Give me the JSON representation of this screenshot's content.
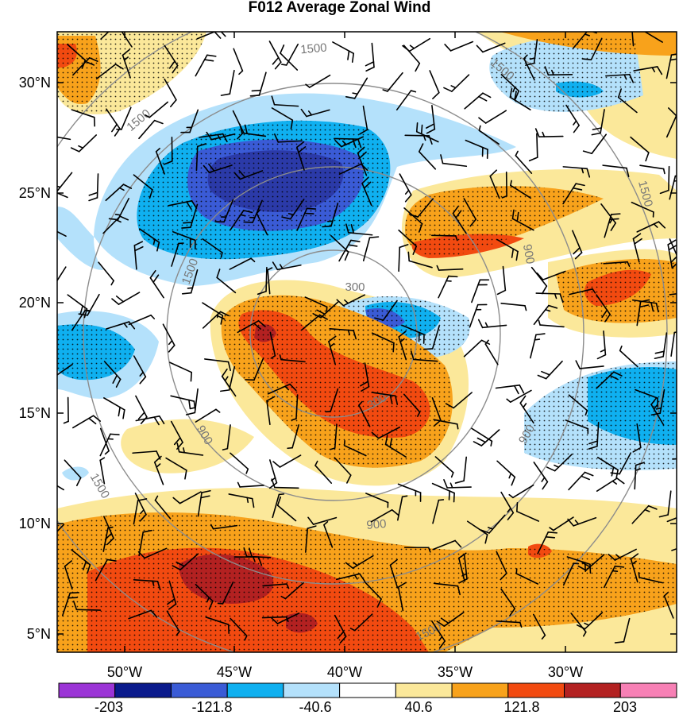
{
  "title": "F012 Average Zonal Wind",
  "lat_labels": [
    "30°N",
    "25°N",
    "20°N",
    "15°N",
    "10°N",
    "5°N"
  ],
  "lon_labels": [
    "50°W",
    "45°W",
    "40°W",
    "35°W",
    "30°W"
  ],
  "colorbar": {
    "labels": [
      "-203",
      "-121.8",
      "-40.6",
      "40.6",
      "121.8",
      "203"
    ],
    "colors": [
      "#9b34d6",
      "#0a1a8c",
      "#3a5bd6",
      "#0fb0f0",
      "#b4e1fb",
      "#ffffff",
      "#fbe89a",
      "#f8a21b",
      "#f24a10",
      "#b32121",
      "#f780b5"
    ]
  },
  "range_ring_labels": [
    "300",
    "300",
    "900",
    "900",
    "900",
    "900",
    "1500",
    "1500",
    "1500",
    "1500",
    "1500",
    "1500",
    "1500"
  ],
  "shading_colors": {
    "light_blue": "#b4e1fb",
    "mid_blue": "#0fb0f0",
    "blue": "#3a5bd6",
    "dark_blue": "#2b3aa8",
    "light_yellow": "#fbe89a",
    "orange": "#f8a21b",
    "red_orange": "#f24a10",
    "dark_red": "#b32121"
  }
}
